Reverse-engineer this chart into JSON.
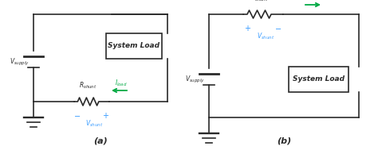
{
  "bg_color": "#ffffff",
  "line_color": "#2a2a2a",
  "blue_color": "#3399ff",
  "green_color": "#00aa44",
  "label_a": "(a)",
  "label_b": "(b)",
  "vsupply_label": "$V_{supply}$",
  "rshunt_label": "$R_{shunt}$",
  "iload_label": "$I_{load}$",
  "vshunt_label": "$V_{shunt}$",
  "system_load_label": "System Load",
  "figsize": [
    4.74,
    1.89
  ],
  "dpi": 100
}
